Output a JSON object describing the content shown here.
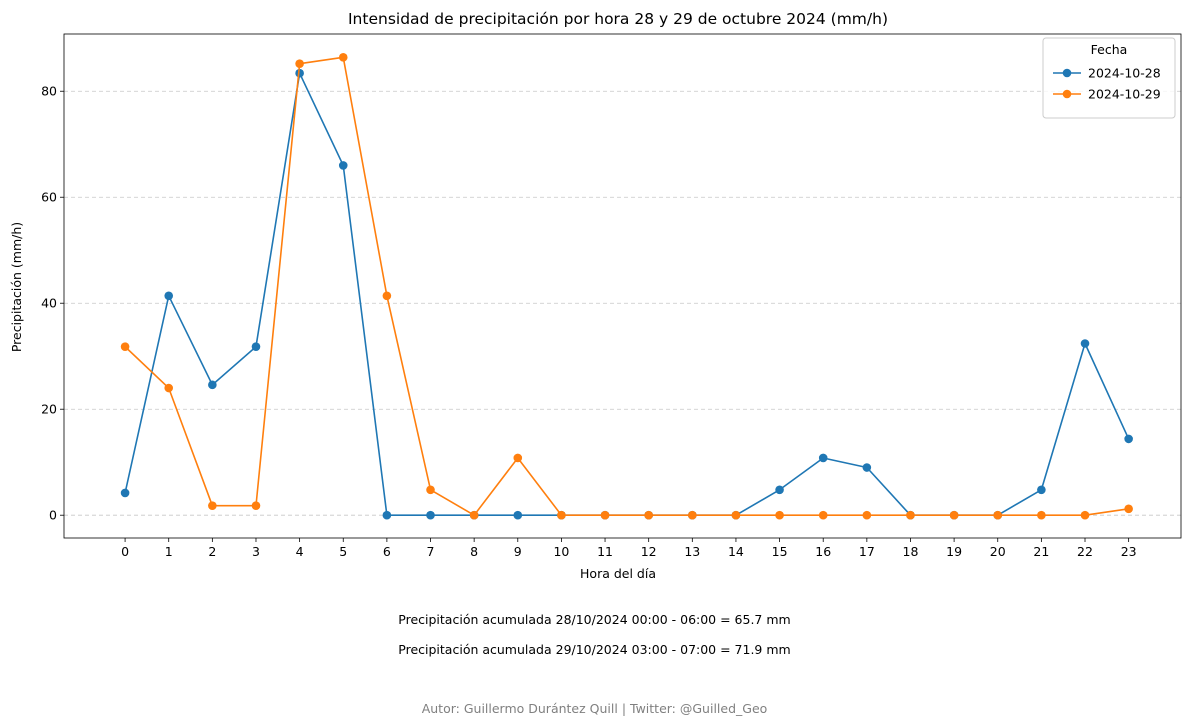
{
  "chart_data": {
    "type": "line",
    "title": "Intensidad de precipitación por hora 28 y 29 de octubre 2024 (mm/h)",
    "xlabel": "Hora del día",
    "ylabel": "Precipitación (mm/h)",
    "x": [
      0,
      1,
      2,
      3,
      4,
      5,
      6,
      7,
      8,
      9,
      10,
      11,
      12,
      13,
      14,
      15,
      16,
      17,
      18,
      19,
      20,
      21,
      22,
      23
    ],
    "xlim": [
      -1.4,
      24.2
    ],
    "ylim": [
      -4.3,
      90.8
    ],
    "yticks": [
      0,
      20,
      40,
      60,
      80
    ],
    "grid": "y-dashed",
    "legend": {
      "title": "Fecha",
      "placement": "top-right"
    },
    "series": [
      {
        "name": "2024-10-28",
        "color": "#1f77b4",
        "values": [
          4.2,
          41.4,
          24.6,
          31.8,
          83.4,
          66.0,
          0,
          0,
          0,
          0,
          0,
          0,
          0,
          0,
          0,
          4.8,
          10.8,
          9.0,
          0,
          0,
          0,
          4.8,
          32.4,
          14.4
        ]
      },
      {
        "name": "2024-10-29",
        "color": "#ff7f0e",
        "values": [
          31.8,
          24.0,
          1.8,
          1.8,
          85.2,
          86.4,
          41.4,
          4.8,
          0,
          10.8,
          0,
          0,
          0,
          0,
          0,
          0,
          0,
          0,
          0,
          0,
          0,
          0,
          0,
          1.2
        ]
      }
    ]
  },
  "notes": {
    "accum_28": "Precipitación acumulada 28/10/2024 00:00 - 06:00 = 65.7 mm",
    "accum_29": "Precipitación acumulada 29/10/2024 03:00 - 07:00 = 71.9 mm",
    "credit": "Autor: Guillermo Durántez Quill | Twitter: @Guilled_Geo"
  }
}
